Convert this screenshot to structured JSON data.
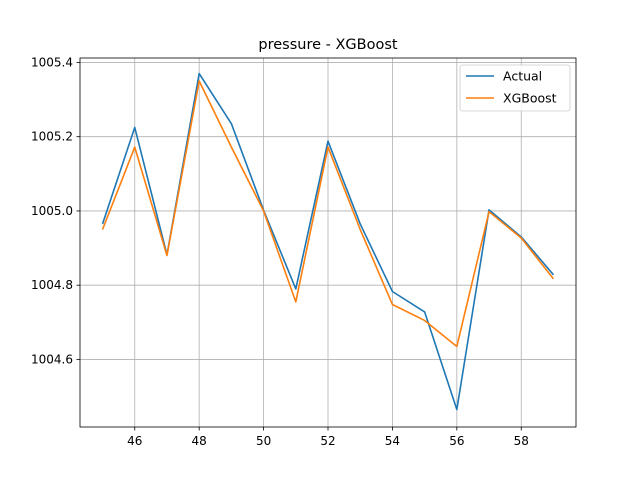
{
  "chart_data": {
    "type": "line",
    "title": "pressure - XGBoost",
    "xlabel": "",
    "ylabel": "",
    "x": [
      45,
      46,
      47,
      48,
      49,
      50,
      51,
      52,
      53,
      54,
      55,
      56,
      57,
      58,
      59
    ],
    "series": [
      {
        "name": "Actual",
        "color": "#1f77b4",
        "values": [
          1004.965,
          1005.225,
          1004.882,
          1005.37,
          1005.235,
          1005.002,
          1004.79,
          1005.188,
          1004.965,
          1004.783,
          1004.728,
          1004.465,
          1005.003,
          1004.93,
          1004.828
        ]
      },
      {
        "name": "XGBoost",
        "color": "#ff7f0e",
        "values": [
          1004.95,
          1005.172,
          1004.88,
          1005.35,
          1005.172,
          1005.0,
          1004.755,
          1005.172,
          1004.95,
          1004.748,
          1004.705,
          1004.635,
          1004.998,
          1004.927,
          1004.817
        ]
      }
    ],
    "xlim": [
      44.3,
      59.7
    ],
    "ylim": [
      1004.418,
      1005.412
    ],
    "xticks": [
      46,
      48,
      50,
      52,
      54,
      56,
      58
    ],
    "xtick_labels": [
      "46",
      "48",
      "50",
      "52",
      "54",
      "56",
      "58"
    ],
    "yticks": [
      1004.6,
      1004.8,
      1005.0,
      1005.2,
      1005.4
    ],
    "ytick_labels": [
      "1004.6",
      "1004.8",
      "1005.0",
      "1005.2",
      "1005.4"
    ],
    "grid": true,
    "legend_position": "top-right"
  }
}
